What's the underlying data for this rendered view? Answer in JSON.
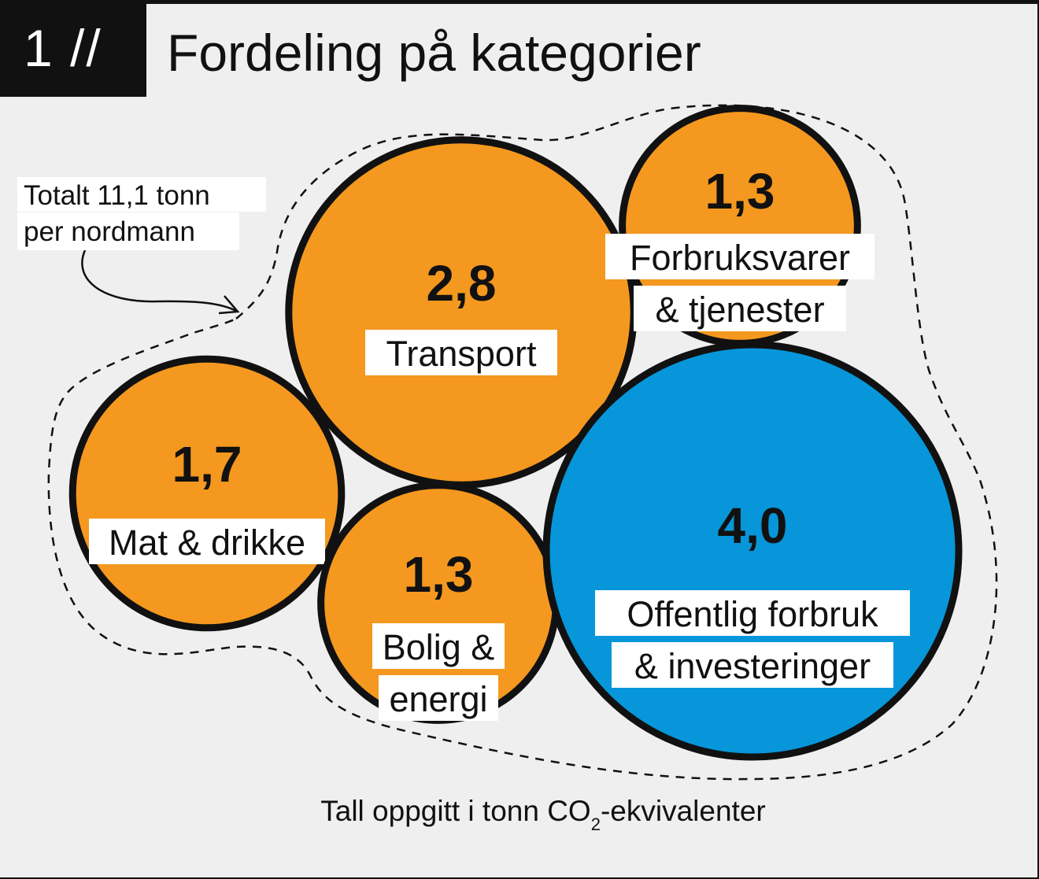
{
  "header": {
    "number": "1 //",
    "title": "Fordeling på kategorier"
  },
  "annotation": {
    "line1": "Totalt 11,1 tonn",
    "line2": "per nordmann"
  },
  "footer": {
    "text_before": "Tall oppgitt i tonn CO",
    "subscript": "2",
    "text_after": "-ekvivalenter"
  },
  "colors": {
    "orange": "#f4981f",
    "blue": "#0796d9",
    "outline": "#111111"
  },
  "chart_data": {
    "type": "bubble",
    "unit": "tonn CO2-ekvivalenter",
    "total_label": "Totalt 11,1 tonn per nordmann",
    "items": [
      {
        "id": "transport",
        "value": 2.8,
        "value_label": "2,8",
        "label_lines": [
          "Transport"
        ],
        "color": "orange"
      },
      {
        "id": "forbruksvarer",
        "value": 1.3,
        "value_label": "1,3",
        "label_lines": [
          "Forbruksvarer",
          "& tjenester"
        ],
        "color": "orange"
      },
      {
        "id": "mat",
        "value": 1.7,
        "value_label": "1,7",
        "label_lines": [
          "Mat & drikke"
        ],
        "color": "orange"
      },
      {
        "id": "bolig",
        "value": 1.3,
        "value_label": "1,3",
        "label_lines": [
          "Bolig &",
          "energi"
        ],
        "color": "orange"
      },
      {
        "id": "offentlig",
        "value": 4.0,
        "value_label": "4,0",
        "label_lines": [
          "Offentlig forbruk",
          "& investeringer"
        ],
        "color": "blue"
      }
    ]
  }
}
